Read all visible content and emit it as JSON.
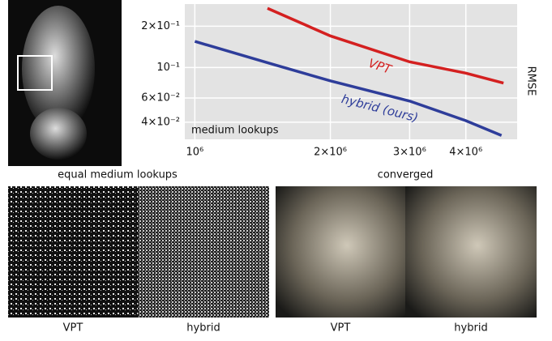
{
  "chart_data": {
    "type": "line",
    "xscale": "log",
    "yscale": "log",
    "grid": true,
    "xlabel": "medium lookups",
    "ylabel": "RMSE",
    "xlim": [
      950000,
      5200000
    ],
    "ylim": [
      0.03,
      0.29
    ],
    "xticks": [
      {
        "value": 1000000,
        "label": "10⁶"
      },
      {
        "value": 2000000,
        "label": "2×10⁶"
      },
      {
        "value": 3000000,
        "label": "3×10⁶"
      },
      {
        "value": 4000000,
        "label": "4×10⁶"
      }
    ],
    "yticks": [
      {
        "value": 0.2,
        "label": "2×10⁻¹"
      },
      {
        "value": 0.1,
        "label": "10⁻¹"
      },
      {
        "value": 0.06,
        "label": "6×10⁻²"
      },
      {
        "value": 0.04,
        "label": "4×10⁻²"
      }
    ],
    "series": [
      {
        "name": "VPT",
        "color": "#d42020",
        "x": [
          1450000,
          2000000,
          3000000,
          4000000,
          4850000
        ],
        "values": [
          0.27,
          0.17,
          0.11,
          0.091,
          0.077
        ]
      },
      {
        "name": "hybrid (ours)",
        "color": "#2e3d9a",
        "x": [
          1000000,
          1500000,
          2000000,
          3000000,
          4000000,
          4800000
        ],
        "values": [
          0.155,
          0.105,
          0.08,
          0.057,
          0.041,
          0.032
        ]
      }
    ]
  },
  "captions": {
    "left": "equal medium lookups",
    "right": "converged"
  },
  "panels": [
    "VPT",
    "hybrid",
    "VPT",
    "hybrid"
  ]
}
